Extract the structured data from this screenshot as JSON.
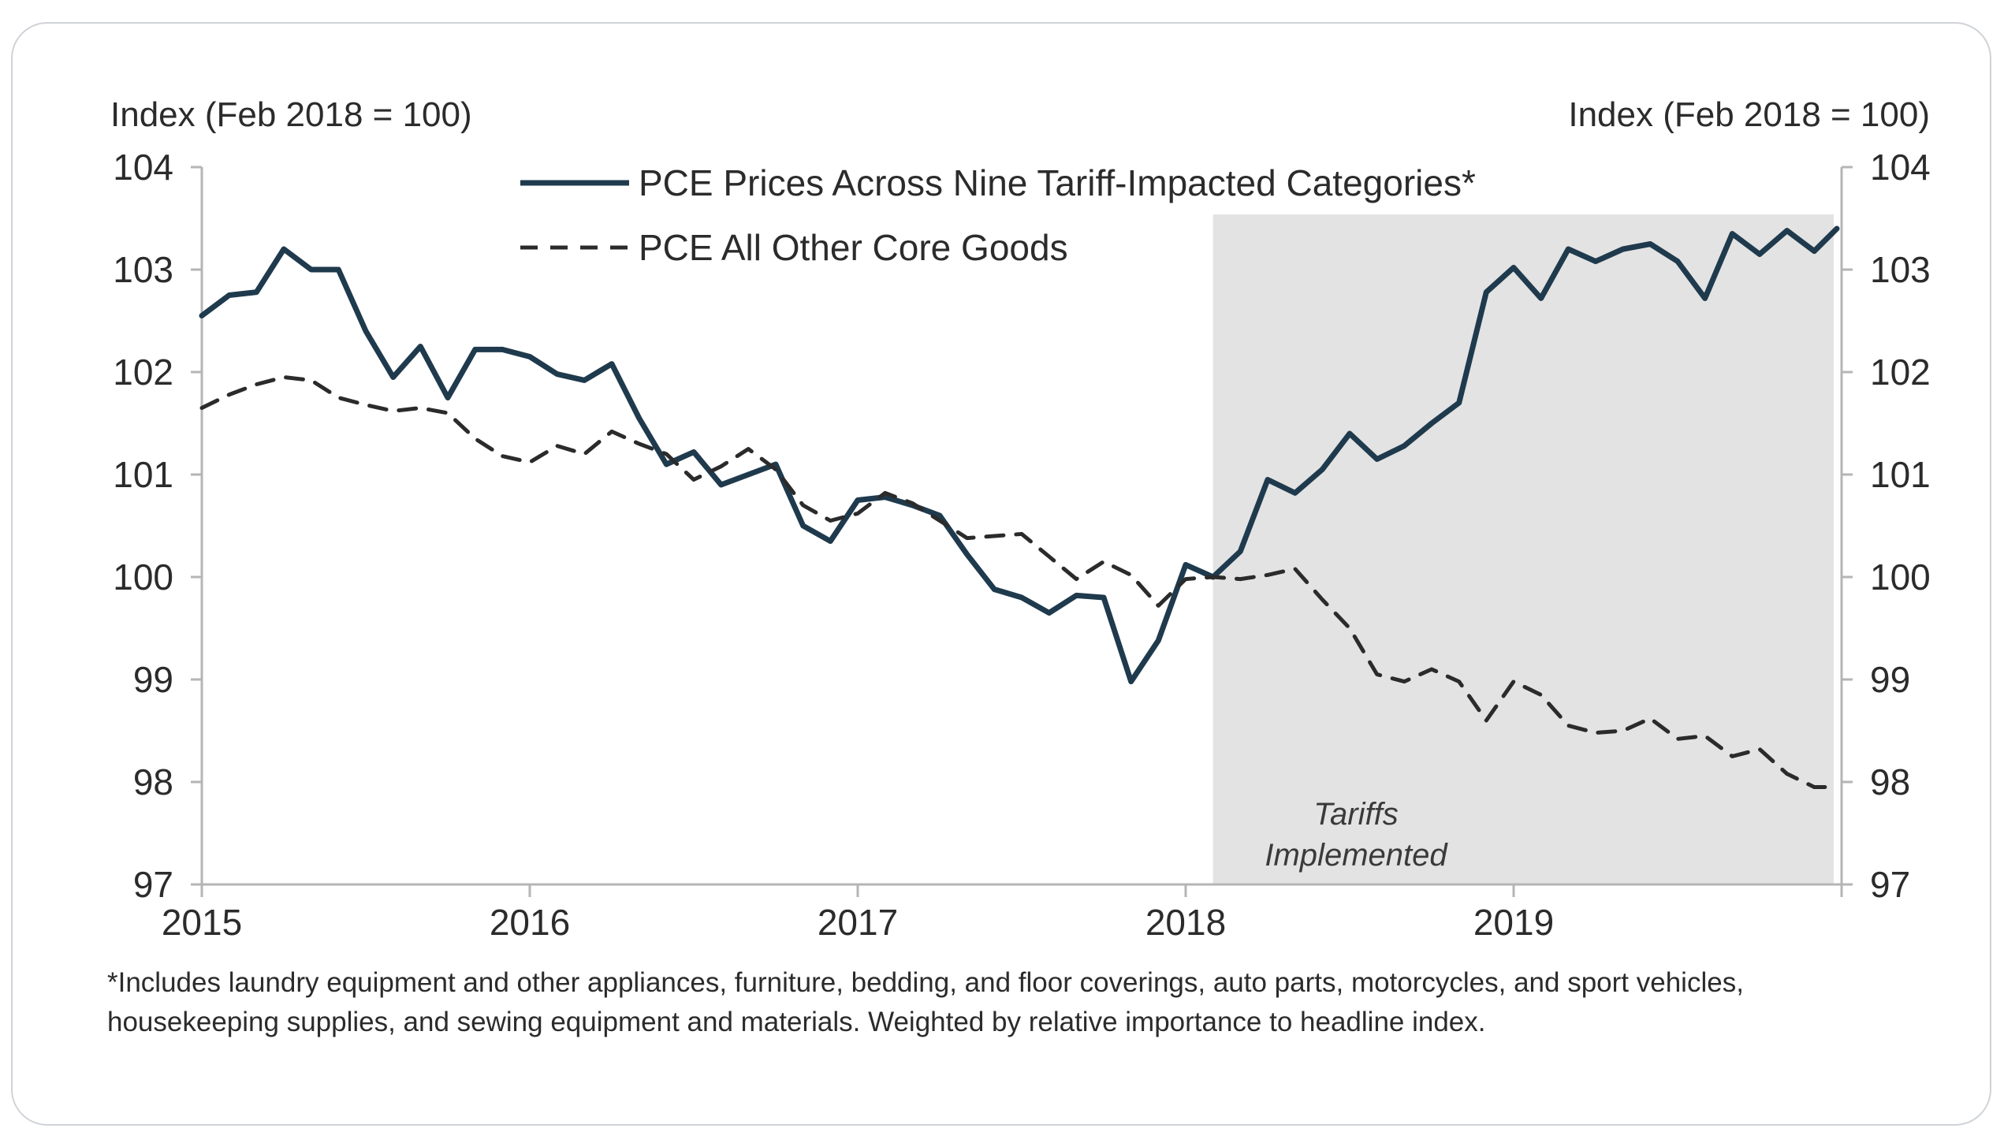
{
  "chart_data": {
    "type": "line",
    "ylabel_left": "Index (Feb 2018 = 100)",
    "ylabel_right": "Index (Feb 2018 = 100)",
    "ylim": [
      97,
      104
    ],
    "yticks": [
      "97",
      "98",
      "99",
      "100",
      "101",
      "102",
      "103",
      "104"
    ],
    "xticks": [
      "2015",
      "2016",
      "2017",
      "2018",
      "2019"
    ],
    "xlim": [
      "2015-01",
      "2020-01"
    ],
    "grid": false,
    "legend_position": "top-center",
    "shaded_region": {
      "start": "2018-02",
      "end": "2020-01",
      "label_line1": "Tariffs",
      "label_line2": "Implemented"
    },
    "series": [
      {
        "name": "PCE Prices Across Nine Tariff-Impacted Categories*",
        "style": "solid",
        "color": "#1f3a4d",
        "x": [
          "2015-01",
          "2015-02",
          "2015-03",
          "2015-04",
          "2015-05",
          "2015-06",
          "2015-07",
          "2015-08",
          "2015-09",
          "2015-10",
          "2015-11",
          "2015-12",
          "2016-01",
          "2016-02",
          "2016-03",
          "2016-04",
          "2016-05",
          "2016-06",
          "2016-07",
          "2016-08",
          "2016-09",
          "2016-10",
          "2016-11",
          "2016-12",
          "2017-01",
          "2017-02",
          "2017-03",
          "2017-04",
          "2017-05",
          "2017-06",
          "2017-07",
          "2017-08",
          "2017-09",
          "2017-10",
          "2017-11",
          "2017-12",
          "2018-01",
          "2018-02",
          "2018-03",
          "2018-04",
          "2018-05",
          "2018-06",
          "2018-07",
          "2018-08",
          "2018-09",
          "2018-10",
          "2018-11",
          "2018-12",
          "2019-01",
          "2019-02",
          "2019-03",
          "2019-04",
          "2019-05",
          "2019-06",
          "2019-07",
          "2019-08",
          "2019-09",
          "2019-10",
          "2019-11",
          "2019-12"
        ],
        "values": [
          102.55,
          102.75,
          102.78,
          103.2,
          103.0,
          103.0,
          102.4,
          101.95,
          102.25,
          101.75,
          102.22,
          102.22,
          102.15,
          101.98,
          101.92,
          102.08,
          101.55,
          101.1,
          101.22,
          100.9,
          101.0,
          101.1,
          100.5,
          100.35,
          100.75,
          100.78,
          100.7,
          100.6,
          100.22,
          99.88,
          99.8,
          99.65,
          99.82,
          99.8,
          98.98,
          99.38,
          100.12,
          100.0,
          100.25,
          100.95,
          100.82,
          101.05,
          101.4,
          101.15,
          101.28,
          101.5,
          101.7,
          102.78,
          103.02,
          102.72,
          103.2,
          103.08,
          103.2,
          103.25,
          103.08,
          102.72,
          103.35,
          103.15,
          103.38,
          103.18
        ],
        "extra_last": 103.4
      },
      {
        "name": "PCE All Other Core Goods",
        "style": "dashed",
        "color": "#2b2b2b",
        "x": [
          "2015-01",
          "2015-02",
          "2015-03",
          "2015-04",
          "2015-05",
          "2015-06",
          "2015-07",
          "2015-08",
          "2015-09",
          "2015-10",
          "2015-11",
          "2015-12",
          "2016-01",
          "2016-02",
          "2016-03",
          "2016-04",
          "2016-05",
          "2016-06",
          "2016-07",
          "2016-08",
          "2016-09",
          "2016-10",
          "2016-11",
          "2016-12",
          "2017-01",
          "2017-02",
          "2017-03",
          "2017-04",
          "2017-05",
          "2017-06",
          "2017-07",
          "2017-08",
          "2017-09",
          "2017-10",
          "2017-11",
          "2017-12",
          "2018-01",
          "2018-02",
          "2018-03",
          "2018-04",
          "2018-05",
          "2018-06",
          "2018-07",
          "2018-08",
          "2018-09",
          "2018-10",
          "2018-11",
          "2018-12",
          "2019-01",
          "2019-02",
          "2019-03",
          "2019-04",
          "2019-05",
          "2019-06",
          "2019-07",
          "2019-08",
          "2019-09",
          "2019-10",
          "2019-11",
          "2019-12"
        ],
        "values": [
          101.65,
          101.78,
          101.88,
          101.95,
          101.92,
          101.75,
          101.68,
          101.62,
          101.65,
          101.6,
          101.35,
          101.18,
          101.12,
          101.28,
          101.2,
          101.42,
          101.3,
          101.2,
          100.95,
          101.08,
          101.25,
          101.05,
          100.7,
          100.55,
          100.62,
          100.82,
          100.72,
          100.55,
          100.38,
          100.4,
          100.42,
          100.2,
          99.98,
          100.15,
          100.02,
          99.72,
          99.98,
          100.0,
          99.98,
          100.02,
          100.08,
          99.78,
          99.5,
          99.05,
          98.98,
          99.1,
          98.98,
          98.6,
          98.98,
          98.85,
          98.55,
          98.48,
          98.5,
          98.62,
          98.42,
          98.45,
          98.25,
          98.32,
          98.08,
          97.95
        ],
        "extra_last": 97.95
      }
    ]
  },
  "footnote": "*Includes laundry equipment and other appliances, furniture, bedding, and floor coverings, auto parts, motorcycles, and sport vehicles, housekeeping supplies, and sewing equipment and materials. Weighted by relative importance to headline index."
}
